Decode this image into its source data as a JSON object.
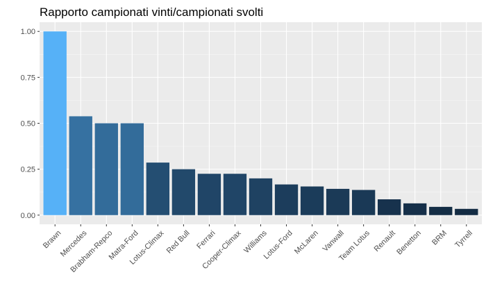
{
  "chart_data": {
    "type": "bar",
    "title": "Rapporto campionati vinti/campionati svolti",
    "xlabel": "",
    "ylabel": "",
    "categories": [
      "Brawn",
      "Mercedes",
      "Brabham-Repco",
      "Matra-Ford",
      "Lotus-Climax",
      "Red Bull",
      "Ferrari",
      "Cooper-Climax",
      "Williams",
      "Lotus-Ford",
      "McLaren",
      "Vanwall",
      "Team Lotus",
      "Renault",
      "Benetton",
      "BRM",
      "Tyrrell"
    ],
    "values": [
      1.0,
      0.538,
      0.5,
      0.5,
      0.286,
      0.25,
      0.225,
      0.225,
      0.2,
      0.167,
      0.156,
      0.143,
      0.137,
      0.086,
      0.064,
      0.045,
      0.034
    ],
    "ylim": [
      -0.05,
      1.05
    ],
    "yticks": [
      0.0,
      0.25,
      0.5,
      0.75,
      1.0
    ],
    "ytick_labels": [
      "0.00",
      "0.25",
      "0.50",
      "0.75",
      "1.00"
    ],
    "grid": true,
    "legend": "none",
    "colors": {
      "panel": "#ebebeb",
      "grid_major": "#ffffff",
      "bar_low": "#132b43",
      "bar_high": "#56b1f7"
    }
  }
}
